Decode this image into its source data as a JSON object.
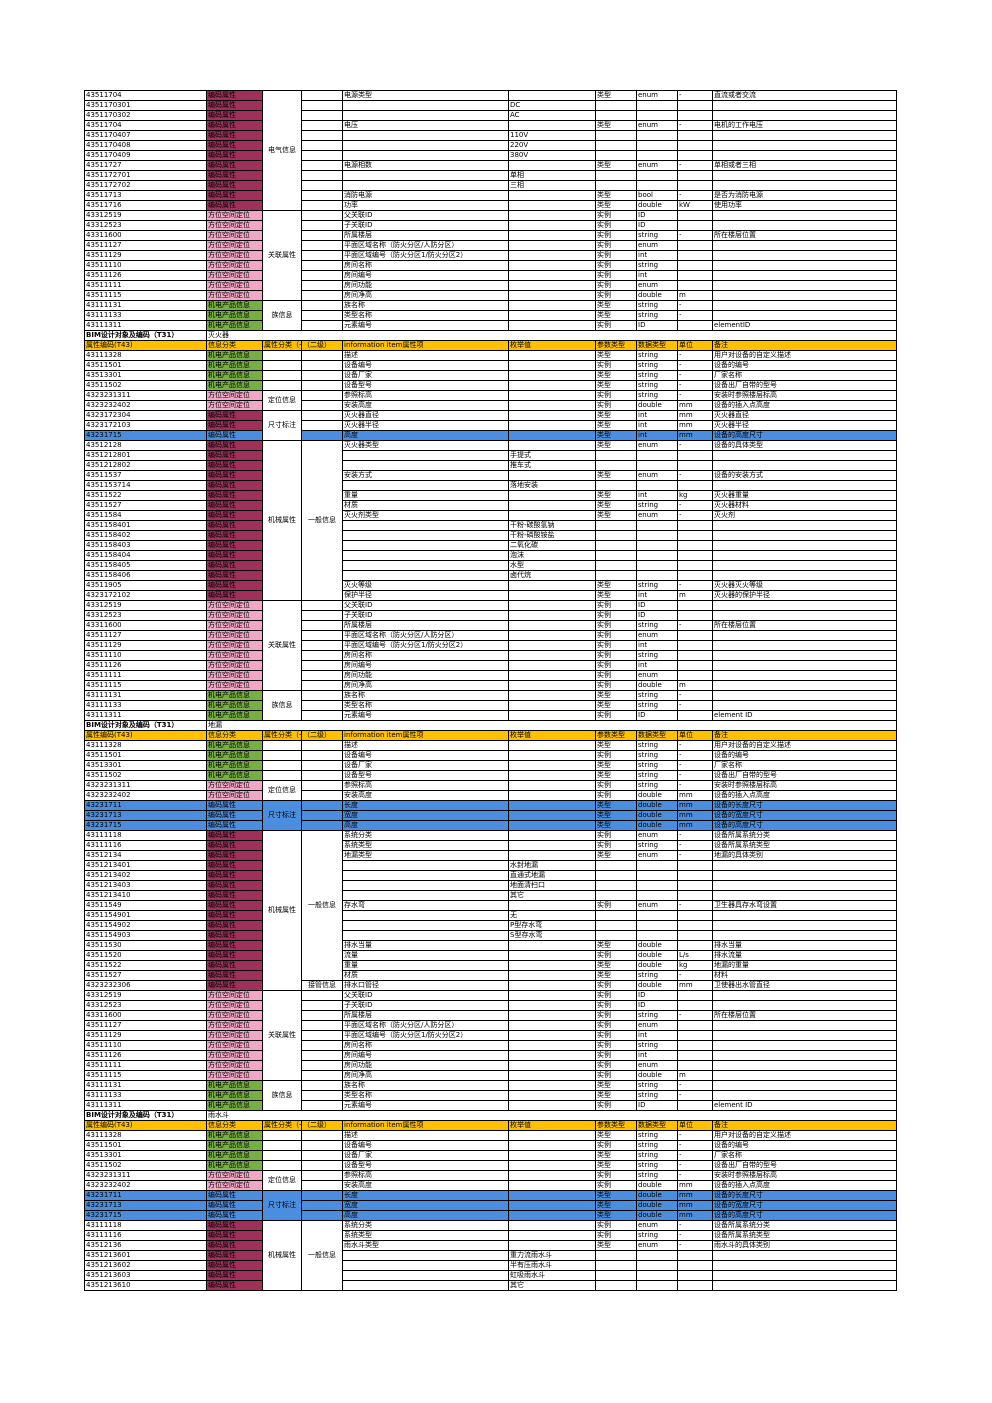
{
  "colors": {
    "header_bg": "#ffc000",
    "highlight_bg": "#4b8ee0",
    "category": {
      "机电产品信息": "#76b041",
      "方位空间定位": "#f2a7c6",
      "编码属性": "#a0305a"
    }
  },
  "rows": [
    [
      "43511704",
      "编码属性",
      "电气信息",
      "",
      "电源类型",
      "",
      "类型",
      "enum",
      "-",
      "直流或者交流"
    ],
    [
      "4351170301",
      "编码属性",
      null,
      "",
      "",
      "DC",
      "",
      "",
      "",
      ""
    ],
    [
      "4351170302",
      "编码属性",
      null,
      "",
      "",
      "AC",
      "",
      "",
      "",
      ""
    ],
    [
      "43511704",
      "编码属性",
      null,
      "",
      "电压",
      "",
      "类型",
      "enum",
      "-",
      "电机的工作电压"
    ],
    [
      "4351170407",
      "编码属性",
      null,
      "",
      "",
      "110V",
      "",
      "",
      "",
      ""
    ],
    [
      "4351170408",
      "编码属性",
      null,
      "",
      "",
      "220V",
      "",
      "",
      "",
      ""
    ],
    [
      "4351170409",
      "编码属性",
      null,
      "",
      "",
      "380V",
      "",
      "",
      "",
      ""
    ],
    [
      "43511727",
      "编码属性",
      null,
      "",
      "电源相数",
      "",
      "类型",
      "enum",
      "-",
      "单相或者三相"
    ],
    [
      "4351172701",
      "编码属性",
      null,
      "",
      "",
      "单相",
      "",
      "",
      "",
      ""
    ],
    [
      "4351172702",
      "编码属性",
      null,
      "",
      "",
      "三相",
      "",
      "",
      "",
      ""
    ],
    [
      "43511713",
      "编码属性",
      null,
      "",
      "消防电源",
      "",
      "类型",
      "bool",
      "-",
      "是否为消防电源"
    ],
    [
      "43511716",
      "编码属性",
      null,
      "",
      "功率",
      "",
      "类型",
      "double",
      "kW",
      "使用功率"
    ],
    [
      "43312519",
      "方位空间定位",
      "关联属性",
      "",
      "父关联ID",
      "",
      "实例",
      "ID",
      "",
      ""
    ],
    [
      "43312523",
      "方位空间定位",
      null,
      "",
      "子关联ID",
      "",
      "实例",
      "ID",
      "",
      ""
    ],
    [
      "43311600",
      "方位空间定位",
      null,
      "",
      "所属楼层",
      "",
      "实例",
      "string",
      "-",
      "所在楼层位置"
    ],
    [
      "43511127",
      "方位空间定位",
      null,
      "",
      "平面区域名称（防火分区/人防分区）",
      "",
      "实例",
      "enum",
      "",
      ""
    ],
    [
      "43511129",
      "方位空间定位",
      null,
      "",
      "平面区域编号（防火分区1/防火分区2）",
      "",
      "实例",
      "int",
      "",
      ""
    ],
    [
      "43511110",
      "方位空间定位",
      null,
      "",
      "房间名称",
      "",
      "实例",
      "string",
      "",
      ""
    ],
    [
      "43511126",
      "方位空间定位",
      null,
      "",
      "房间编号",
      "",
      "实例",
      "int",
      "",
      ""
    ],
    [
      "43511111",
      "方位空间定位",
      null,
      "",
      "房间功能",
      "",
      "实例",
      "enum",
      "",
      ""
    ],
    [
      "43511115",
      "方位空间定位",
      null,
      "",
      "房间净高",
      "",
      "实例",
      "double",
      "m",
      ""
    ],
    [
      "43111131",
      "机电产品信息",
      "族信息",
      "",
      "族名称",
      "",
      "类型",
      "string",
      "-",
      ""
    ],
    [
      "43111133",
      "机电产品信息",
      null,
      "",
      "类型名称",
      "",
      "类型",
      "string",
      "-",
      ""
    ],
    [
      "43111311",
      "机电产品信息",
      null,
      "",
      "元素编号",
      "",
      "实例",
      "ID",
      "",
      "elementID"
    ]
  ],
  "fire_extinguisher": {
    "section_label": "BIM设计对象及编码（T31）",
    "section_name": "灭火器",
    "header": [
      "属性编码(T43)",
      "信息分类",
      "属性分类（一级）",
      "（二级）",
      "information item属性项",
      "枚举值",
      "参数类型",
      "数据类型",
      "单位",
      "备注"
    ],
    "rows": [
      [
        "43111328",
        "机电产品信息",
        "",
        "",
        "描述",
        "",
        "类型",
        "string",
        "-",
        "用户对设备的自定义描述"
      ],
      [
        "43511501",
        "机电产品信息",
        "",
        "",
        "设备编号",
        "",
        "实例",
        "string",
        "-",
        "设备的编号"
      ],
      [
        "43513301",
        "机电产品信息",
        "",
        "",
        "设备厂家",
        "",
        "类型",
        "string",
        "-",
        "厂家名称"
      ],
      [
        "43511502",
        "机电产品信息",
        "",
        "",
        "设备型号",
        "",
        "类型",
        "string",
        "-",
        "设备出厂自带的型号"
      ],
      [
        "4323231311",
        "方位空间定位",
        "定位信息",
        "",
        "参照标高",
        "",
        "实例",
        "string",
        "-",
        "安装时参照楼层标高"
      ],
      [
        "4323232402",
        "方位空间定位",
        null,
        "",
        "安装高度",
        "",
        "实例",
        "double",
        "mm",
        "设备的插入点高度"
      ],
      [
        "4323172304",
        "编码属性",
        "尺寸标注",
        "",
        "灭火器直径",
        "",
        "类型",
        "int",
        "mm",
        "灭火器直径"
      ],
      [
        "4323172103",
        "编码属性",
        null,
        "",
        "灭火器半径",
        "",
        "类型",
        "int",
        "mm",
        "灭火器半径"
      ],
      [
        "43231715",
        "编码属性",
        null,
        "",
        "高度",
        "",
        "类型",
        "int",
        "mm",
        "设备的高度尺寸"
      ],
      [
        "43512128",
        "编码属性",
        "机械属性",
        "一般信息",
        "灭火器类型",
        "",
        "类型",
        "enum",
        "-",
        "设备的具体类型"
      ],
      [
        "4351212801",
        "编码属性",
        null,
        null,
        "",
        "手提式",
        "",
        "",
        "",
        ""
      ],
      [
        "4351212802",
        "编码属性",
        null,
        null,
        "",
        "推车式",
        "",
        "",
        "",
        ""
      ],
      [
        "43511537",
        "编码属性",
        null,
        null,
        "安装方式",
        "",
        "类型",
        "enum",
        "-",
        "设备的安装方式"
      ],
      [
        "4351153714",
        "编码属性",
        null,
        null,
        "",
        "落地安装",
        "",
        "",
        "",
        ""
      ],
      [
        "43511522",
        "编码属性",
        null,
        null,
        "重量",
        "",
        "类型",
        "int",
        "kg",
        "灭火器重量"
      ],
      [
        "43511527",
        "编码属性",
        null,
        null,
        "材质",
        "",
        "类型",
        "string",
        "-",
        "灭火器材料"
      ],
      [
        "43511584",
        "编码属性",
        null,
        null,
        "灭火剂类型",
        "",
        "类型",
        "enum",
        "-",
        "灭火剂"
      ],
      [
        "4351158401",
        "编码属性",
        null,
        null,
        "",
        "干粉-碳酸氢钠",
        "",
        "",
        "",
        ""
      ],
      [
        "4351158402",
        "编码属性",
        null,
        null,
        "",
        "干粉-磷酸铵盐",
        "",
        "",
        "",
        ""
      ],
      [
        "4351158403",
        "编码属性",
        null,
        null,
        "",
        "二氧化碳",
        "",
        "",
        "",
        ""
      ],
      [
        "4351158404",
        "编码属性",
        null,
        null,
        "",
        "泡沫",
        "",
        "",
        "",
        ""
      ],
      [
        "4351158405",
        "编码属性",
        null,
        null,
        "",
        "水型",
        "",
        "",
        "",
        ""
      ],
      [
        "4351158406",
        "编码属性",
        null,
        null,
        "",
        "卤代烷",
        "",
        "",
        "",
        ""
      ],
      [
        "43511905",
        "编码属性",
        null,
        null,
        "灭火等级",
        "",
        "类型",
        "string",
        "-",
        "灭火器灭火等级"
      ],
      [
        "4323172102",
        "编码属性",
        null,
        null,
        "保护半径",
        "",
        "类型",
        "int",
        "m",
        "灭火器的保护半径"
      ],
      [
        "43312519",
        "方位空间定位",
        "关联属性",
        "",
        "父关联ID",
        "",
        "实例",
        "ID",
        "",
        ""
      ],
      [
        "43312523",
        "方位空间定位",
        null,
        "",
        "子关联ID",
        "",
        "实例",
        "ID",
        "",
        ""
      ],
      [
        "43311600",
        "方位空间定位",
        null,
        "",
        "所属楼层",
        "",
        "实例",
        "string",
        "-",
        "所在楼层位置"
      ],
      [
        "43511127",
        "方位空间定位",
        null,
        "",
        "平面区域名称（防火分区/人防分区）",
        "",
        "实例",
        "enum",
        "",
        ""
      ],
      [
        "43511129",
        "方位空间定位",
        null,
        "",
        "平面区域编号（防火分区1/防火分区2）",
        "",
        "实例",
        "int",
        "",
        ""
      ],
      [
        "43511110",
        "方位空间定位",
        null,
        "",
        "房间名称",
        "",
        "实例",
        "string",
        "",
        ""
      ],
      [
        "43511126",
        "方位空间定位",
        null,
        "",
        "房间编号",
        "",
        "实例",
        "int",
        "",
        ""
      ],
      [
        "43511111",
        "方位空间定位",
        null,
        "",
        "房间功能",
        "",
        "实例",
        "enum",
        "",
        ""
      ],
      [
        "43511115",
        "方位空间定位",
        null,
        "",
        "房间净高",
        "",
        "实例",
        "double",
        "m",
        ""
      ],
      [
        "43111131",
        "机电产品信息",
        "族信息",
        "",
        "族名称",
        "",
        "类型",
        "string",
        "-",
        ""
      ],
      [
        "43111133",
        "机电产品信息",
        null,
        "",
        "类型名称",
        "",
        "类型",
        "string",
        "-",
        ""
      ],
      [
        "43111311",
        "机电产品信息",
        null,
        "",
        "元素编号",
        "",
        "实例",
        "ID",
        "",
        "element ID"
      ]
    ],
    "highlight_rows": [
      8
    ]
  },
  "floor_drain": {
    "section_label": "BIM设计对象及编码（T31）",
    "section_name": "地漏",
    "header": [
      "属性编码(T43)",
      "信息分类",
      "属性分类（一级）",
      "（二级）",
      "information item属性项",
      "枚举值",
      "参数类型",
      "数据类型",
      "单位",
      "备注"
    ],
    "rows": [
      [
        "43111328",
        "机电产品信息",
        "",
        "",
        "描述",
        "",
        "类型",
        "string",
        "-",
        "用户对设备的自定义描述"
      ],
      [
        "43511501",
        "机电产品信息",
        "",
        "",
        "设备编号",
        "",
        "实例",
        "string",
        "-",
        "设备的编号"
      ],
      [
        "43513301",
        "机电产品信息",
        "",
        "",
        "设备厂家",
        "",
        "类型",
        "string",
        "-",
        "厂家名称"
      ],
      [
        "43511502",
        "机电产品信息",
        "",
        "",
        "设备型号",
        "",
        "类型",
        "string",
        "-",
        "设备出厂自带的型号"
      ],
      [
        "4323231311",
        "方位空间定位",
        "定位信息",
        "",
        "参照标高",
        "",
        "实例",
        "string",
        "-",
        "安装时参照楼层标高"
      ],
      [
        "4323232402",
        "方位空间定位",
        null,
        "",
        "安装高度",
        "",
        "实例",
        "double",
        "mm",
        "设备的插入点高度"
      ],
      [
        "43231711",
        "编码属性",
        "尺寸标注",
        "",
        "长度",
        "",
        "类型",
        "double",
        "mm",
        "设备的长度尺寸"
      ],
      [
        "43231713",
        "编码属性",
        null,
        "",
        "宽度",
        "",
        "类型",
        "double",
        "mm",
        "设备的宽度尺寸"
      ],
      [
        "43231715",
        "编码属性",
        null,
        "",
        "高度",
        "",
        "类型",
        "double",
        "mm",
        "设备的高度尺寸"
      ],
      [
        "43111118",
        "编码属性",
        "机械属性",
        "一般信息",
        "系统分类",
        "",
        "实例",
        "enum",
        "-",
        "设备所属系统分类"
      ],
      [
        "43111116",
        "编码属性",
        null,
        null,
        "系统类型",
        "",
        "实例",
        "string",
        "-",
        "设备所属系统类型"
      ],
      [
        "43512134",
        "编码属性",
        null,
        null,
        "地漏类型",
        "",
        "类型",
        "enum",
        "-",
        "地漏的具体类别"
      ],
      [
        "4351213401",
        "编码属性",
        null,
        null,
        "",
        "水封地漏",
        "",
        "",
        "",
        ""
      ],
      [
        "4351213402",
        "编码属性",
        null,
        null,
        "",
        "直通式地漏",
        "",
        "",
        "",
        ""
      ],
      [
        "4351213403",
        "编码属性",
        null,
        null,
        "",
        "地面清扫口",
        "",
        "",
        "",
        ""
      ],
      [
        "4351213410",
        "编码属性",
        null,
        null,
        "",
        "其它",
        "",
        "",
        "",
        ""
      ],
      [
        "43511549",
        "编码属性",
        null,
        null,
        "存水弯",
        "",
        "实例",
        "enum",
        "-",
        "卫生器具存水弯设置"
      ],
      [
        "4351154901",
        "编码属性",
        null,
        null,
        "",
        "无",
        "",
        "",
        "",
        ""
      ],
      [
        "4351154902",
        "编码属性",
        null,
        null,
        "",
        "P型存水弯",
        "",
        "",
        "",
        ""
      ],
      [
        "4351154903",
        "编码属性",
        null,
        null,
        "",
        "S型存水弯",
        "",
        "",
        "",
        ""
      ],
      [
        "43511530",
        "编码属性",
        null,
        null,
        "排水当量",
        "",
        "类型",
        "double",
        "",
        "排水当量"
      ],
      [
        "43511520",
        "编码属性",
        null,
        null,
        "流量",
        "",
        "实例",
        "double",
        "L/s",
        "排水流量"
      ],
      [
        "43511522",
        "编码属性",
        null,
        null,
        "重量",
        "",
        "类型",
        "double",
        "kg",
        "地漏的重量"
      ],
      [
        "43511527",
        "编码属性",
        null,
        null,
        "材质",
        "",
        "类型",
        "string",
        "-",
        "材料"
      ],
      [
        "4323232306",
        "编码属性",
        null,
        "接管信息",
        "排水口管径",
        "",
        "实例",
        "double",
        "mm",
        "卫使器出水管直径"
      ],
      [
        "43312519",
        "方位空间定位",
        "关联属性",
        "",
        "父关联ID",
        "",
        "实例",
        "ID",
        "",
        ""
      ],
      [
        "43312523",
        "方位空间定位",
        null,
        "",
        "子关联ID",
        "",
        "实例",
        "ID",
        "",
        ""
      ],
      [
        "43311600",
        "方位空间定位",
        null,
        "",
        "所属楼层",
        "",
        "实例",
        "string",
        "-",
        "所在楼层位置"
      ],
      [
        "43511127",
        "方位空间定位",
        null,
        "",
        "平面区域名称（防火分区/人防分区）",
        "",
        "实例",
        "enum",
        "",
        ""
      ],
      [
        "43511129",
        "方位空间定位",
        null,
        "",
        "平面区域编号（防火分区1/防火分区2）",
        "",
        "实例",
        "int",
        "",
        ""
      ],
      [
        "43511110",
        "方位空间定位",
        null,
        "",
        "房间名称",
        "",
        "实例",
        "string",
        "",
        ""
      ],
      [
        "43511126",
        "方位空间定位",
        null,
        "",
        "房间编号",
        "",
        "实例",
        "int",
        "",
        ""
      ],
      [
        "43511111",
        "方位空间定位",
        null,
        "",
        "房间功能",
        "",
        "实例",
        "enum",
        "",
        ""
      ],
      [
        "43511115",
        "方位空间定位",
        null,
        "",
        "房间净高",
        "",
        "实例",
        "double",
        "m",
        ""
      ],
      [
        "43111131",
        "机电产品信息",
        "族信息",
        "",
        "族名称",
        "",
        "类型",
        "string",
        "-",
        ""
      ],
      [
        "43111133",
        "机电产品信息",
        null,
        "",
        "类型名称",
        "",
        "类型",
        "string",
        "-",
        ""
      ],
      [
        "43111311",
        "机电产品信息",
        null,
        "",
        "元素编号",
        "",
        "实例",
        "ID",
        "",
        "element ID"
      ]
    ],
    "highlight_rows": [
      6,
      7,
      8
    ]
  },
  "rain_drain": {
    "section_label": "BIM设计对象及编码（T31）",
    "section_name": "雨水斗",
    "header": [
      "属性编码(T43)",
      "信息分类",
      "属性分类（一级）",
      "（二级）",
      "information item属性项",
      "枚举值",
      "参数类型",
      "数据类型",
      "单位",
      "备注"
    ],
    "rows": [
      [
        "43111328",
        "机电产品信息",
        "",
        "",
        "描述",
        "",
        "类型",
        "string",
        "-",
        "用户对设备的自定义描述"
      ],
      [
        "43511501",
        "机电产品信息",
        "",
        "",
        "设备编号",
        "",
        "实例",
        "string",
        "-",
        "设备的编号"
      ],
      [
        "43513301",
        "机电产品信息",
        "",
        "",
        "设备厂家",
        "",
        "类型",
        "string",
        "-",
        "厂家名称"
      ],
      [
        "43511502",
        "机电产品信息",
        "",
        "",
        "设备型号",
        "",
        "类型",
        "string",
        "-",
        "设备出厂自带的型号"
      ],
      [
        "4323231311",
        "方位空间定位",
        "定位信息",
        "",
        "参照标高",
        "",
        "实例",
        "string",
        "-",
        "安装时参照楼层标高"
      ],
      [
        "4323232402",
        "方位空间定位",
        null,
        "",
        "安装高度",
        "",
        "实例",
        "double",
        "mm",
        "设备的插入点高度"
      ],
      [
        "43231711",
        "编码属性",
        "尺寸标注",
        "",
        "长度",
        "",
        "类型",
        "double",
        "mm",
        "设备的长度尺寸"
      ],
      [
        "43231713",
        "编码属性",
        null,
        "",
        "宽度",
        "",
        "类型",
        "double",
        "mm",
        "设备的宽度尺寸"
      ],
      [
        "43231715",
        "编码属性",
        null,
        "",
        "高度",
        "",
        "类型",
        "double",
        "mm",
        "设备的高度尺寸"
      ],
      [
        "43111118",
        "编码属性",
        "机械属性",
        "一般信息",
        "系统分类",
        "",
        "实例",
        "enum",
        "-",
        "设备所属系统分类"
      ],
      [
        "43111116",
        "编码属性",
        null,
        null,
        "系统类型",
        "",
        "实例",
        "string",
        "-",
        "设备所属系统类型"
      ],
      [
        "43512136",
        "编码属性",
        null,
        null,
        "雨水斗类型",
        "",
        "类型",
        "enum",
        "-",
        "雨水斗的具体类别"
      ],
      [
        "4351213601",
        "编码属性",
        null,
        null,
        "",
        "重力流雨水斗",
        "",
        "",
        "",
        ""
      ],
      [
        "4351213602",
        "编码属性",
        null,
        null,
        "",
        "半有压雨水斗",
        "",
        "",
        "",
        ""
      ],
      [
        "4351213603",
        "编码属性",
        null,
        null,
        "",
        "虹吸雨水斗",
        "",
        "",
        "",
        ""
      ],
      [
        "4351213610",
        "编码属性",
        null,
        null,
        "",
        "其它",
        "",
        "",
        "",
        ""
      ]
    ],
    "highlight_rows": [
      6,
      7,
      8
    ]
  }
}
